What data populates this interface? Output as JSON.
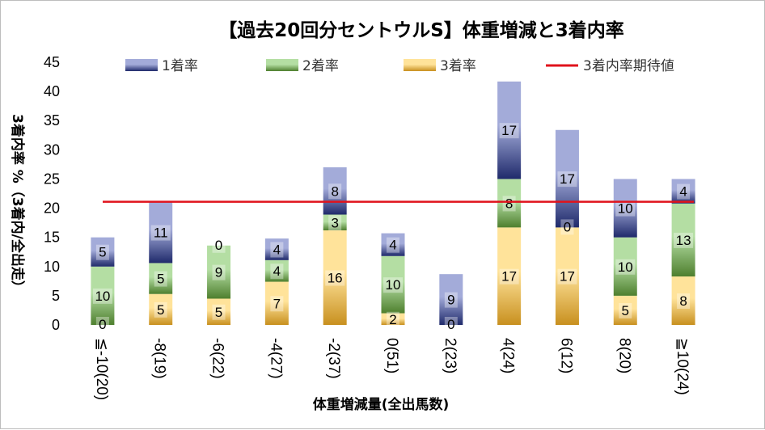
{
  "chart_data": {
    "type": "bar",
    "stacked": true,
    "title": "【過去20回分セントウルS】体重増減と3着内率",
    "xlabel": "体重増減量(全出馬数)",
    "ylabel": "3着内率 %（3着内/全出走）",
    "ylim": [
      0,
      45
    ],
    "yticks": [
      "0",
      "5",
      "10",
      "15",
      "20",
      "25",
      "30",
      "35",
      "40",
      "45"
    ],
    "ytick_values": [
      0,
      5,
      10,
      15,
      20,
      25,
      30,
      35,
      40,
      45
    ],
    "categories": [
      "≦-10(20)",
      "-8(19)",
      "-6(22)",
      "-4(27)",
      "-2(37)",
      "0(51)",
      "2(23)",
      "4(24)",
      "6(12)",
      "8(20)",
      "≧10(24)"
    ],
    "series": [
      {
        "name": "3着率",
        "values": [
          0,
          5.3,
          4.5,
          7.4,
          16.2,
          2.0,
          0,
          16.7,
          16.7,
          5.0,
          8.3
        ],
        "labels": [
          "0",
          "5",
          "5",
          "7",
          "16",
          "2",
          "0",
          "17",
          "17",
          "5",
          "8"
        ]
      },
      {
        "name": "2着率",
        "values": [
          10.0,
          5.3,
          9.1,
          3.7,
          2.7,
          9.8,
          0,
          8.3,
          0,
          10.0,
          12.5
        ],
        "labels": [
          "10",
          "5",
          "9",
          "4",
          "3",
          "10",
          "",
          "8",
          "0",
          "10",
          "13"
        ]
      },
      {
        "name": "1着率",
        "values": [
          5.0,
          10.5,
          0,
          3.7,
          8.1,
          3.9,
          8.7,
          16.7,
          16.7,
          10.0,
          4.2
        ],
        "labels": [
          "5",
          "11",
          "0",
          "4",
          "8",
          "4",
          "9",
          "17",
          "17",
          "10",
          "4"
        ]
      }
    ],
    "reference_line": {
      "name": "3着内率期待値",
      "value": 21.1
    },
    "legend_position": "top",
    "grid": false,
    "colors": {
      "rate1_light": "#a3abd9",
      "rate1_dark": "#1f2a6b",
      "rate2_light": "#b4dea3",
      "rate2_dark": "#4e7f2e",
      "rate3_light": "#ffe39a",
      "rate3_dark": "#c8901f",
      "reference_line": "#e0131c"
    }
  }
}
